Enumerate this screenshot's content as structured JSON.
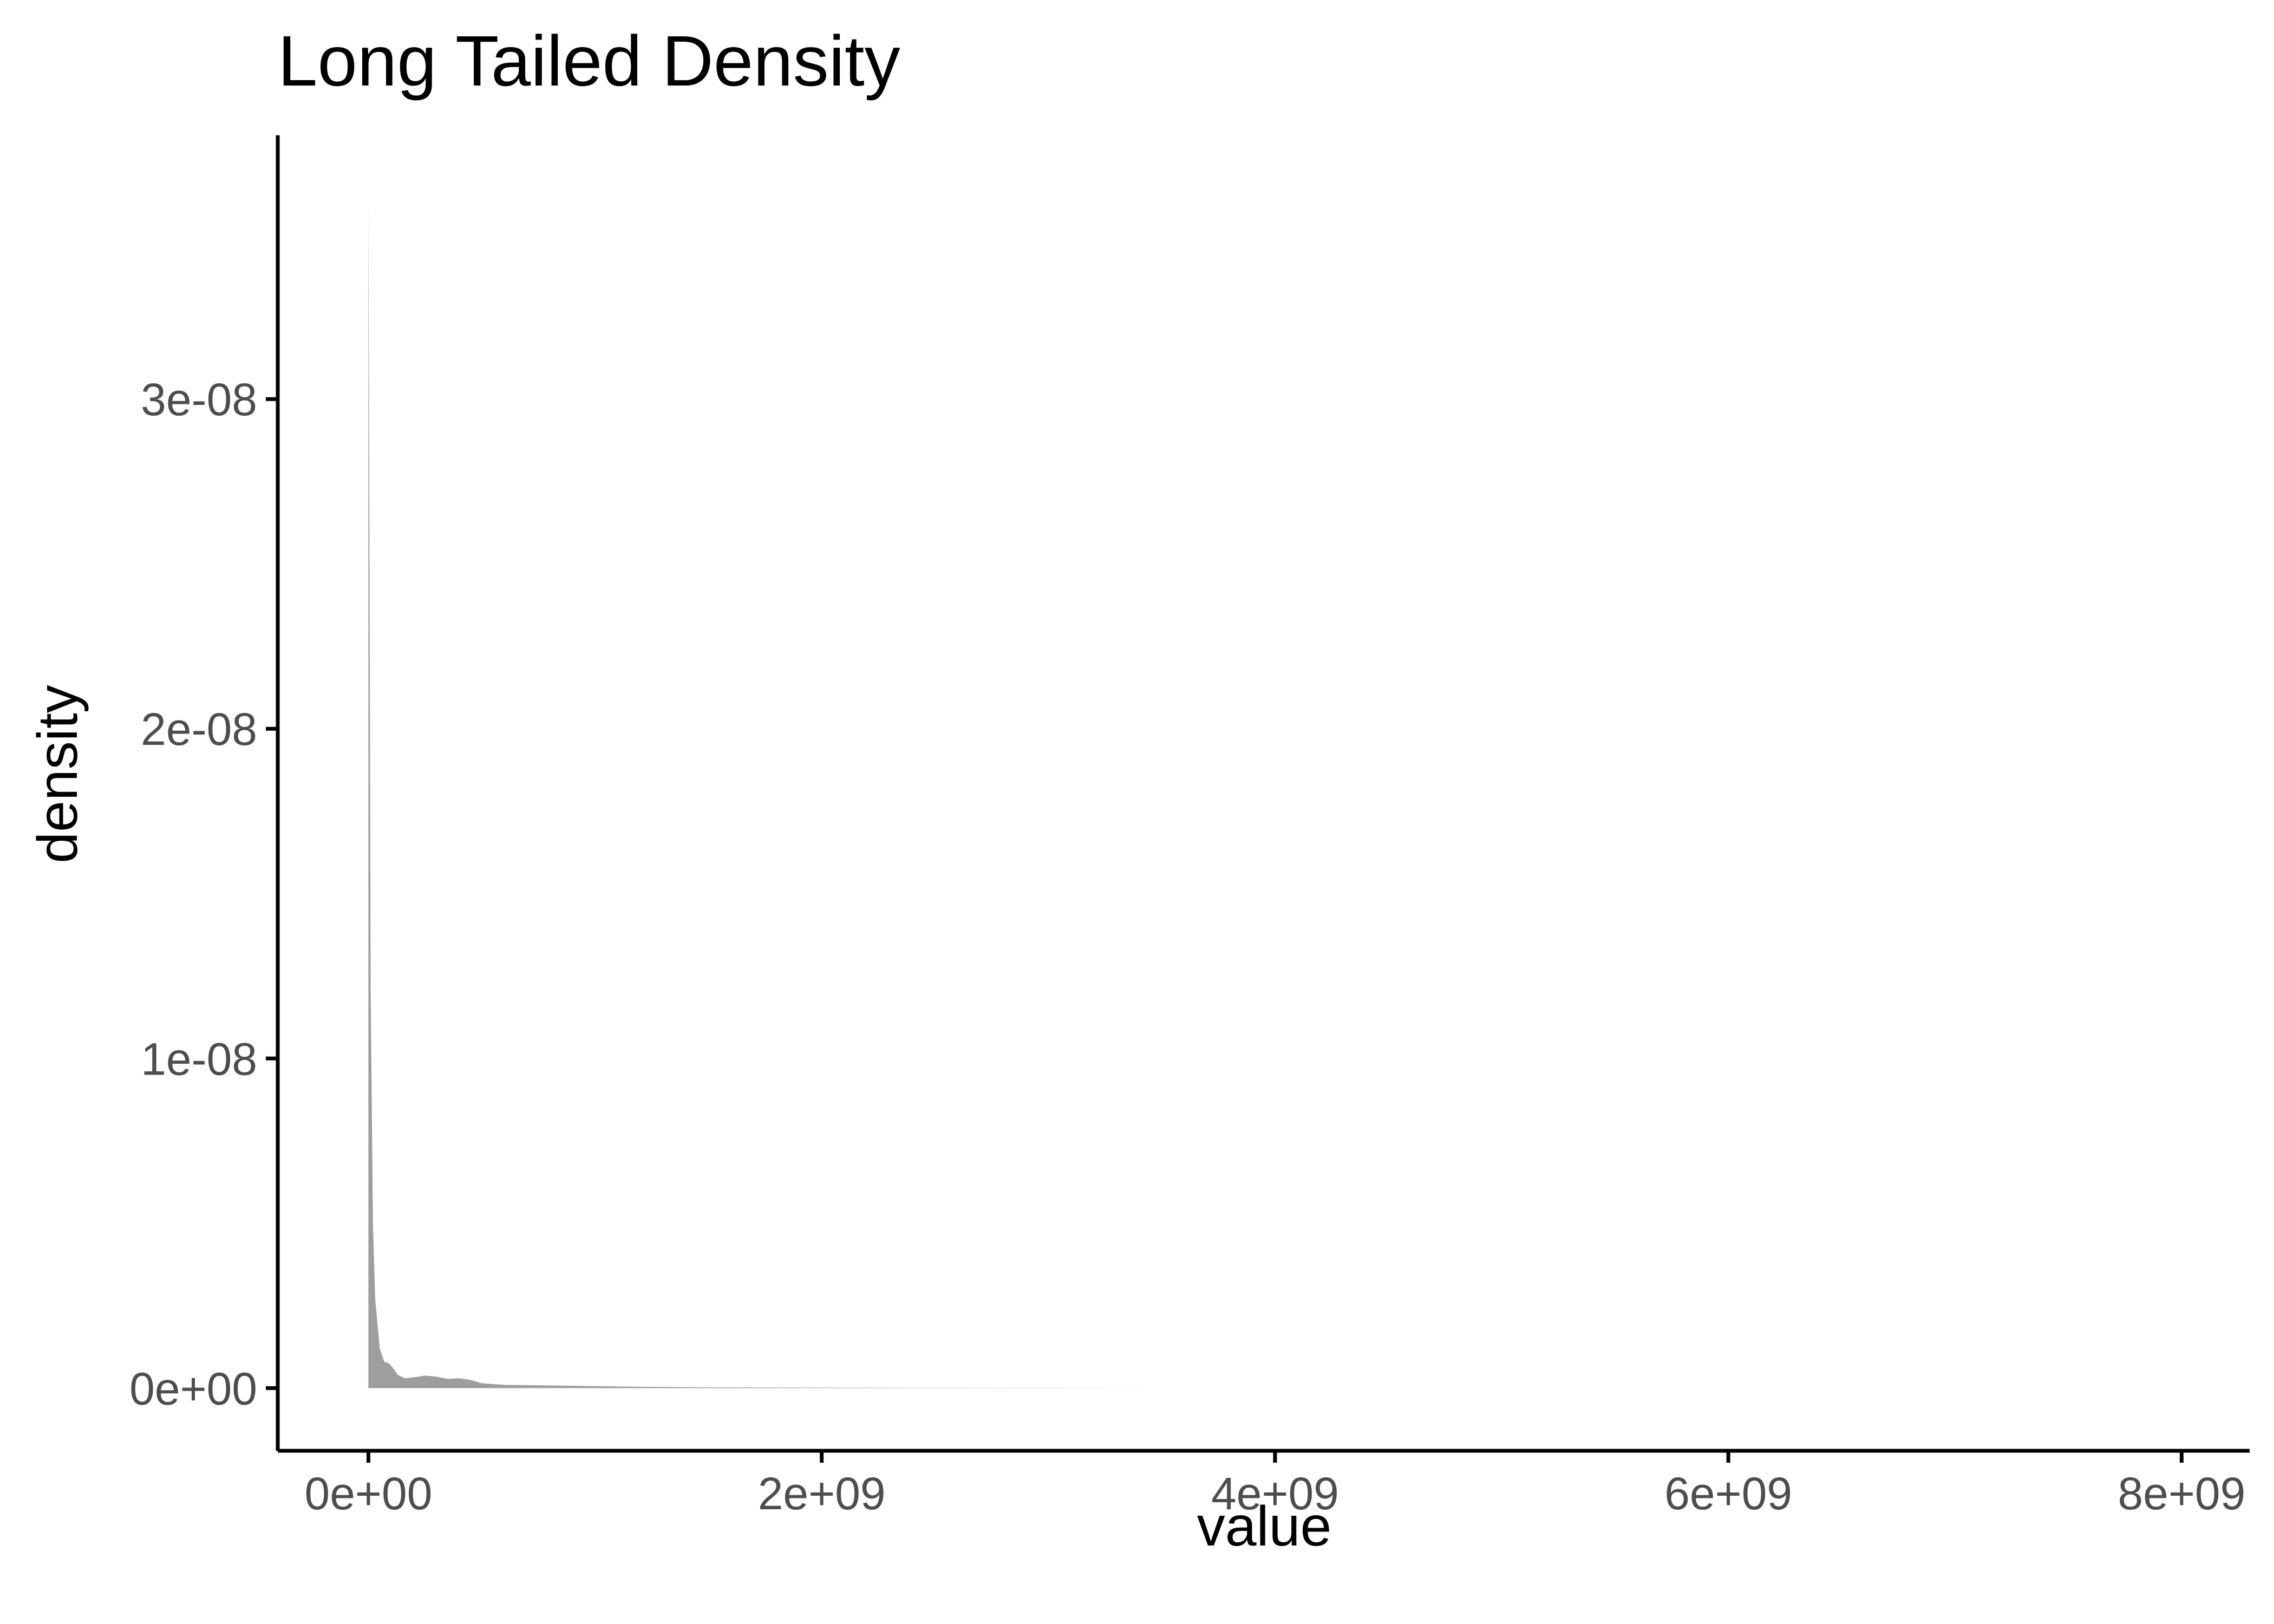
{
  "chart_data": {
    "type": "area",
    "title": "Long Tailed Density",
    "xlabel": "value",
    "ylabel": "density",
    "xlim": [
      -400000000,
      8300000000
    ],
    "ylim": [
      -1.9e-09,
      3.8e-08
    ],
    "x_ticks": [
      {
        "value": 0,
        "label": "0e+00"
      },
      {
        "value": 2000000000,
        "label": "2e+09"
      },
      {
        "value": 4000000000,
        "label": "4e+09"
      },
      {
        "value": 6000000000,
        "label": "6e+09"
      },
      {
        "value": 8000000000,
        "label": "8e+09"
      }
    ],
    "y_ticks": [
      {
        "value": 0,
        "label": "0e+00"
      },
      {
        "value": 1e-08,
        "label": "1e-08"
      },
      {
        "value": 2e-08,
        "label": "2e-08"
      },
      {
        "value": 3e-08,
        "label": "3e-08"
      }
    ],
    "series": [
      {
        "fill_color": "#9e9e9e",
        "x": [
          0,
          5000000,
          10000000,
          20000000,
          30000000,
          50000000,
          70000000,
          90000000,
          110000000,
          130000000,
          160000000,
          200000000,
          250000000,
          300000000,
          350000000,
          400000000,
          450000000,
          500000000,
          600000000,
          800000000,
          1000000000,
          1200000000,
          1500000000,
          2000000000,
          2500000000,
          3000000000,
          3500000000,
          4000000000,
          4500000000
        ],
        "y": [
          3.6e-08,
          2.5e-08,
          1.2e-08,
          5e-09,
          2.7e-09,
          1.2e-09,
          8e-10,
          7.5e-10,
          6e-10,
          4e-10,
          3e-10,
          3.3e-10,
          3.8e-10,
          3.5e-10,
          2.8e-10,
          3e-10,
          2.5e-10,
          1.5e-10,
          1e-10,
          8e-11,
          6e-11,
          4e-11,
          2.5e-11,
          1.5e-11,
          8e-12,
          4e-12,
          2e-12,
          1e-12,
          0
        ]
      }
    ],
    "grid": false,
    "legend": "none"
  }
}
